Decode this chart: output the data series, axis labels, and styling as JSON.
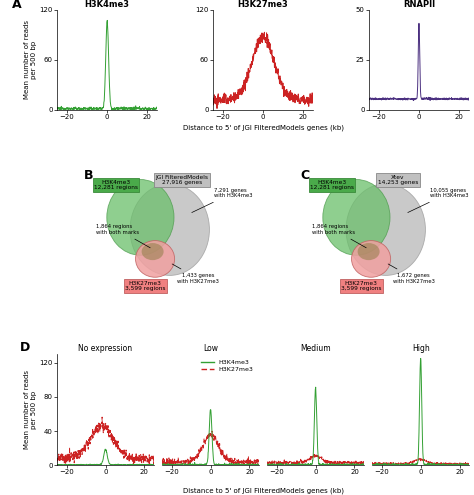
{
  "panel_A": {
    "title1": "H3K4me3",
    "title2": "H3K27me3",
    "title3": "RNAPII",
    "color1": "#33a033",
    "color2": "#cc2222",
    "color3": "#4b3080",
    "ylim1": [
      0,
      120
    ],
    "ylim2": [
      0,
      120
    ],
    "ylim3": [
      0,
      50
    ],
    "yticks1": [
      0,
      60,
      120
    ],
    "yticks2": [
      0,
      60,
      120
    ],
    "yticks3": [
      0,
      25,
      50
    ],
    "xlim": [
      -25,
      25
    ],
    "xticks": [
      -20,
      0,
      20
    ]
  },
  "panel_B": {
    "box_label": "JGI FilteredModels\n27,916 genes",
    "label_green": "H3K4me3\n12,281 regions",
    "label_pink": "H3K27me3\n3,599 regions",
    "ann1": "7,291 genes\nwith H3K4me3",
    "ann2": "1,864 regions\nwith both marks",
    "ann3": "1,433 genes\nwith H3K27me3"
  },
  "panel_C": {
    "box_label": "Xtev\n14,253 genes",
    "label_green": "H3K4me3\n12,281 regions",
    "label_pink": "H3K27me3\n3,599 regions",
    "ann1": "10,055 genes\nwith H3K4me3",
    "ann2": "1,864 regions\nwith both marks",
    "ann3": "1,672 genes\nwith H3K27me3"
  },
  "panel_D": {
    "titles": [
      "No expression",
      "Low",
      "Medium",
      "High"
    ],
    "color_green": "#33a033",
    "color_red": "#cc2222",
    "ylim": [
      0,
      130
    ],
    "yticks": [
      0,
      40,
      80,
      120
    ],
    "xlim": [
      -25,
      25
    ],
    "xticks": [
      -20,
      0,
      20
    ],
    "ylabel": "Mean number of reads\nper 500 bp",
    "xlabel": "Distance to 5' of JGI FilteredModels genes (kb)"
  },
  "ylabel_A": "Mean number of reads\nper 500 bp",
  "xlabel_A": "Distance to 5' of JGI FilteredModels genes (kb)",
  "green_venn": "#6abf6a",
  "pink_venn": "#f0a0a0",
  "gray_venn": "#b8b8b8",
  "green_box": "#4aaa4a",
  "pink_box": "#f08080",
  "gray_box": "#c0c0c0"
}
